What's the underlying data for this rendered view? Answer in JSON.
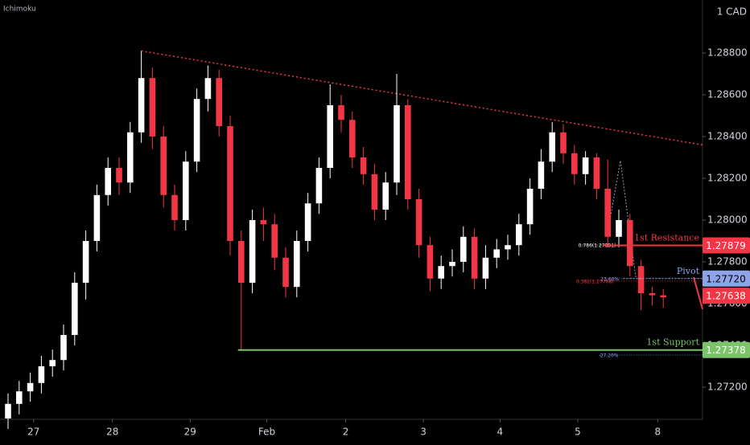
{
  "chart_data": {
    "type": "candlestick",
    "indicator": "Ichimoku",
    "currency": "1 CAD",
    "up_color": "#ffffff",
    "down_color": "#f23645",
    "grid": false,
    "xlim": [
      -0.725,
      62.536
    ],
    "ylim": [
      1.270462,
      1.290538
    ],
    "xticks": [
      {
        "value": 2.3,
        "label": "27"
      },
      {
        "value": 9.4,
        "label": "28"
      },
      {
        "value": 16.4,
        "label": "29"
      },
      {
        "value": 23.3,
        "label": "Feb"
      },
      {
        "value": 30.4,
        "label": "2"
      },
      {
        "value": 37.4,
        "label": "3"
      },
      {
        "value": 44.3,
        "label": "4"
      },
      {
        "value": 51.3,
        "label": "5"
      },
      {
        "value": 58.5,
        "label": "8"
      }
    ],
    "yticks": [
      {
        "value": 1.272,
        "label": "1.27200"
      },
      {
        "value": 1.274,
        "label": "1.27400"
      },
      {
        "value": 1.276,
        "label": "1.27600"
      },
      {
        "value": 1.278,
        "label": "1.27800"
      },
      {
        "value": 1.28,
        "label": "1.28000"
      },
      {
        "value": 1.282,
        "label": "1.28200"
      },
      {
        "value": 1.284,
        "label": "1.28400"
      },
      {
        "value": 1.286,
        "label": "1.28600"
      },
      {
        "value": 1.288,
        "label": "1.28800"
      }
    ],
    "open": [
      1.2705,
      1.2712,
      1.2718,
      1.2722,
      1.273,
      1.2733,
      1.2745,
      1.277,
      1.279,
      1.2812,
      1.2825,
      1.2818,
      1.2842,
      1.2868,
      1.284,
      1.2812,
      1.28,
      1.2828,
      1.2858,
      1.2868,
      1.2845,
      1.279,
      1.277,
      1.28,
      1.2798,
      1.2782,
      1.2768,
      1.279,
      1.2808,
      1.2825,
      1.2855,
      1.2848,
      1.283,
      1.2822,
      1.2805,
      1.2818,
      1.2855,
      1.281,
      1.2788,
      1.2772,
      1.2778,
      1.278,
      1.2792,
      1.2772,
      1.2782,
      1.2786,
      1.2788,
      1.2798,
      1.2815,
      1.2828,
      1.2842,
      1.2832,
      1.2822,
      1.283,
      1.2815,
      1.2792,
      1.28,
      1.2778,
      1.2765,
      1.2764
    ],
    "high": [
      1.2717,
      1.2723,
      1.2727,
      1.2735,
      1.2738,
      1.275,
      1.2775,
      1.2795,
      1.2817,
      1.283,
      1.283,
      1.2847,
      1.2881,
      1.2873,
      1.2845,
      1.2817,
      1.2833,
      1.2863,
      1.2874,
      1.2872,
      1.285,
      1.2795,
      1.2805,
      1.2806,
      1.2803,
      1.2787,
      1.2795,
      1.2813,
      1.283,
      1.2865,
      1.286,
      1.2852,
      1.2835,
      1.2827,
      1.2823,
      1.287,
      1.2858,
      1.2815,
      1.2792,
      1.2783,
      1.2786,
      1.2797,
      1.2796,
      1.2788,
      1.2791,
      1.2793,
      1.2803,
      1.282,
      1.2834,
      1.2847,
      1.2846,
      1.2836,
      1.2833,
      1.2832,
      1.2829,
      1.2805,
      1.2803,
      1.2781,
      1.2768,
      1.2767
    ],
    "low": [
      1.27,
      1.2707,
      1.2713,
      1.2717,
      1.2725,
      1.2728,
      1.274,
      1.2762,
      1.2785,
      1.2807,
      1.2812,
      1.2813,
      1.2837,
      1.2834,
      1.2806,
      1.2795,
      1.2795,
      1.2823,
      1.2852,
      1.284,
      1.2783,
      1.2738,
      1.2765,
      1.279,
      1.2776,
      1.2763,
      1.2763,
      1.2785,
      1.2803,
      1.282,
      1.2842,
      1.2825,
      1.2817,
      1.28,
      1.28,
      1.2812,
      1.2805,
      1.2782,
      1.2766,
      1.2767,
      1.2773,
      1.2775,
      1.2767,
      1.2767,
      1.2777,
      1.2781,
      1.2783,
      1.2793,
      1.281,
      1.2823,
      1.2827,
      1.2817,
      1.2817,
      1.281,
      1.2787,
      1.2787,
      1.2773,
      1.2757,
      1.2759,
      1.2758
    ],
    "close": [
      1.2712,
      1.2718,
      1.2722,
      1.273,
      1.2733,
      1.2745,
      1.277,
      1.279,
      1.2812,
      1.2825,
      1.2818,
      1.2842,
      1.2868,
      1.284,
      1.2812,
      1.28,
      1.2828,
      1.2858,
      1.2868,
      1.2845,
      1.279,
      1.277,
      1.28,
      1.2798,
      1.2782,
      1.2768,
      1.279,
      1.2808,
      1.2825,
      1.2855,
      1.2848,
      1.283,
      1.2822,
      1.2805,
      1.2818,
      1.2855,
      1.281,
      1.2788,
      1.2772,
      1.2778,
      1.278,
      1.2792,
      1.2772,
      1.2782,
      1.2786,
      1.2788,
      1.2798,
      1.2815,
      1.2828,
      1.2842,
      1.2832,
      1.2822,
      1.283,
      1.2815,
      1.2792,
      1.28,
      1.2778,
      1.2765,
      1.2764,
      1.2763
    ],
    "trendline": {
      "x": [
        12,
        62.536
      ],
      "y": [
        1.2881,
        1.2836
      ],
      "color": "#f23645"
    },
    "levels": [
      {
        "name": "1st Resistance",
        "value": 1.27879,
        "value_label": "1.27879",
        "from": 53.6,
        "color": "#f23645",
        "style": "solid"
      },
      {
        "name": "Pivot",
        "value": 1.2772,
        "value_label": "1.27720",
        "from": 55.4,
        "color": "#8fa3e8",
        "style": "dotted"
      },
      {
        "name": "1st Support",
        "value": 1.27378,
        "value_label": "1.27378",
        "from": 20.7,
        "color": "#7cc46a",
        "style": "solid"
      }
    ],
    "last_price": {
      "value": 1.27638,
      "value_label": "1.27638",
      "color": "#f23645"
    },
    "fib_levels": [
      {
        "label": "0.786(1.27881)",
        "value": 1.27881,
        "from": 51.5,
        "color": "#ffffff"
      },
      {
        "label": "23.60%",
        "value": 1.2772,
        "from": 53.5,
        "color": "#8fa3e8"
      },
      {
        "label": "0.382(1.27708)",
        "value": 1.27708,
        "from": 51.3,
        "color": "#f23645"
      },
      {
        "label": "-27.20%",
        "value": 1.27354,
        "from": 53.3,
        "color": "#8fa3e8"
      }
    ]
  }
}
